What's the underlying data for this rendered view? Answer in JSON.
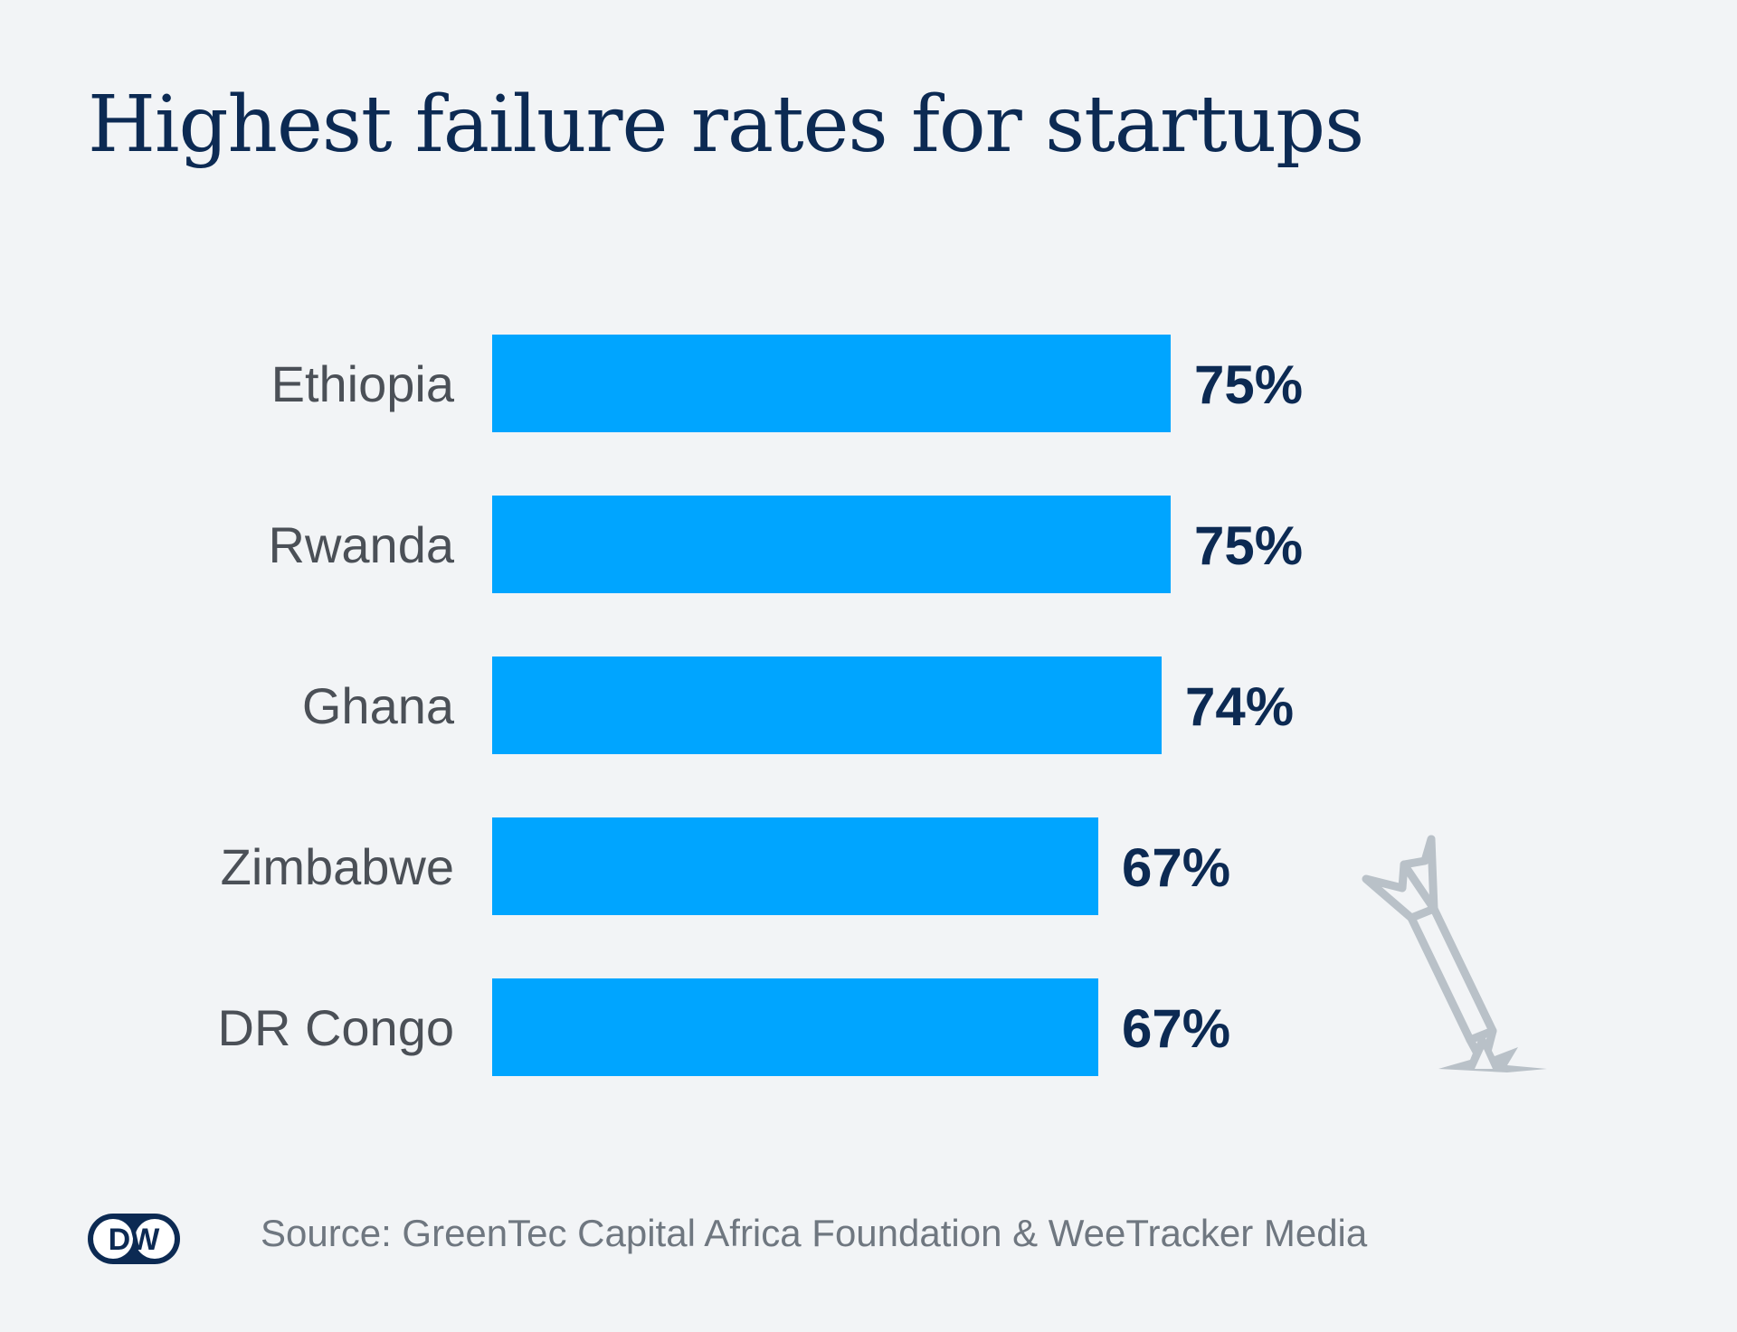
{
  "title": "Highest failure rates for startups",
  "source": "Source: GreenTec Capital Africa Foundation & WeeTracker Media",
  "logo_text": "DW",
  "colors": {
    "background": "#f2f4f6",
    "bar": "#00a5ff",
    "title": "#0c2a53",
    "value_label": "#0c2a53",
    "category_label": "#4b5057",
    "icon": "#b9c1c8"
  },
  "icons": {
    "logo": "dw-logo",
    "decoration": "crashed-rocket-icon"
  },
  "chart_data": {
    "type": "bar",
    "orientation": "horizontal",
    "categories": [
      "Ethiopia",
      "Rwanda",
      "Ghana",
      "Zimbabwe",
      "DR Congo"
    ],
    "values": [
      75,
      75,
      74,
      67,
      67
    ],
    "value_labels": [
      "75%",
      "75%",
      "74%",
      "67%",
      "67%"
    ],
    "unit": "%",
    "title": "Highest failure rates for startups",
    "xlabel": "",
    "ylabel": "",
    "xlim": [
      0,
      100
    ],
    "grid": false,
    "legend": "none"
  }
}
